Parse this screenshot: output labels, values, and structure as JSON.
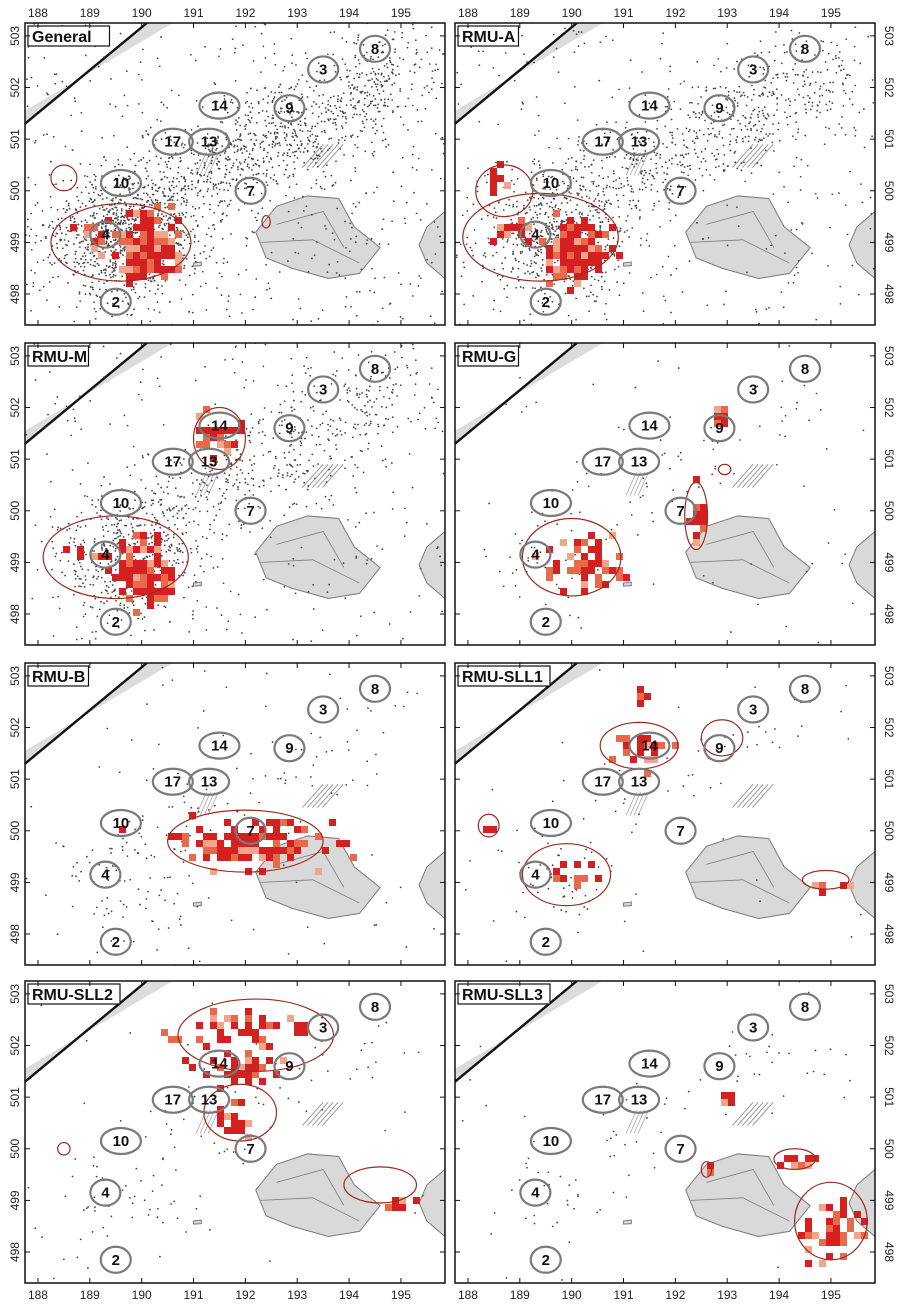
{
  "chart_data": {
    "type": "scatter",
    "x_axis": {
      "ticks": [
        "188",
        "189",
        "190",
        "191",
        "192",
        "193",
        "194",
        "195"
      ],
      "range": [
        187.75,
        195.85
      ]
    },
    "y_axis": {
      "ticks": [
        "498",
        "499",
        "500",
        "501",
        "502",
        "503"
      ],
      "range": [
        497.4,
        503.25
      ]
    },
    "legend": "none",
    "grid": false,
    "colors": {
      "hotspot_high": "#d42020",
      "hotspot_mid": "#e86a4a",
      "hotspot_low": "#f2a58a",
      "contour": "#9e2a1c",
      "zone_outline": "#7a7a7a",
      "water_fill": "#d9d9d9",
      "points": "#444444"
    },
    "zones": [
      {
        "label": "2",
        "x": 189.5,
        "y": 497.85
      },
      {
        "label": "3",
        "x": 193.5,
        "y": 502.35
      },
      {
        "label": "4",
        "x": 189.3,
        "y": 499.15
      },
      {
        "label": "7",
        "x": 192.1,
        "y": 500.0
      },
      {
        "label": "8",
        "x": 194.5,
        "y": 502.75
      },
      {
        "label": "9",
        "x": 192.85,
        "y": 501.6
      },
      {
        "label": "10",
        "x": 189.6,
        "y": 500.15
      },
      {
        "label": "13",
        "x": 191.3,
        "y": 500.95
      },
      {
        "label": "14",
        "x": 191.5,
        "y": 501.65
      },
      {
        "label": "17",
        "x": 190.6,
        "y": 500.95
      }
    ],
    "panels": [
      {
        "title": "General",
        "density": 2400,
        "hotspots": [
          {
            "cx": 190.0,
            "cy": 498.9,
            "rx": 0.55,
            "ry": 0.55,
            "n": 160
          },
          {
            "cx": 188.9,
            "cy": 499.2,
            "rx": 0.3,
            "ry": 0.2,
            "n": 12
          }
        ],
        "contours": [
          {
            "cx": 189.6,
            "cy": 499.0,
            "rx": 1.35,
            "ry": 0.75
          },
          {
            "cx": 188.5,
            "cy": 500.25,
            "rx": 0.25,
            "ry": 0.25
          },
          {
            "cx": 192.4,
            "cy": 499.4,
            "rx": 0.08,
            "ry": 0.12
          }
        ]
      },
      {
        "title": "RMU-A",
        "density": 1500,
        "hotspots": [
          {
            "cx": 190.0,
            "cy": 498.9,
            "rx": 0.55,
            "ry": 0.55,
            "n": 130
          },
          {
            "cx": 188.8,
            "cy": 499.3,
            "rx": 0.4,
            "ry": 0.15,
            "n": 20
          },
          {
            "cx": 188.5,
            "cy": 500.4,
            "rx": 0.2,
            "ry": 0.2,
            "n": 8
          }
        ],
        "contours": [
          {
            "cx": 189.4,
            "cy": 499.1,
            "rx": 1.5,
            "ry": 0.85
          },
          {
            "cx": 188.7,
            "cy": 500.0,
            "rx": 0.55,
            "ry": 0.5
          }
        ]
      },
      {
        "title": "RMU-M",
        "density": 1200,
        "hotspots": [
          {
            "cx": 190.0,
            "cy": 498.9,
            "rx": 0.55,
            "ry": 0.55,
            "n": 120
          },
          {
            "cx": 191.4,
            "cy": 501.5,
            "rx": 0.45,
            "ry": 0.35,
            "n": 22
          },
          {
            "cx": 188.7,
            "cy": 499.25,
            "rx": 0.35,
            "ry": 0.1,
            "n": 10
          }
        ],
        "contours": [
          {
            "cx": 189.5,
            "cy": 499.1,
            "rx": 1.4,
            "ry": 0.8
          },
          {
            "cx": 191.5,
            "cy": 501.4,
            "rx": 0.5,
            "ry": 0.6
          }
        ]
      },
      {
        "title": "RMU-G",
        "density": 150,
        "hotspots": [
          {
            "cx": 190.2,
            "cy": 499.05,
            "rx": 0.55,
            "ry": 0.45,
            "n": 55
          },
          {
            "cx": 192.4,
            "cy": 499.9,
            "rx": 0.15,
            "ry": 0.55,
            "n": 18
          },
          {
            "cx": 192.8,
            "cy": 501.9,
            "rx": 0.15,
            "ry": 0.2,
            "n": 6
          }
        ],
        "contours": [
          {
            "cx": 190.0,
            "cy": 499.1,
            "rx": 0.95,
            "ry": 0.75
          },
          {
            "cx": 192.4,
            "cy": 499.9,
            "rx": 0.22,
            "ry": 0.65
          },
          {
            "cx": 192.95,
            "cy": 500.8,
            "rx": 0.12,
            "ry": 0.1
          }
        ]
      },
      {
        "title": "RMU-B",
        "density": 220,
        "hotspots": [
          {
            "cx": 192.0,
            "cy": 499.8,
            "rx": 1.25,
            "ry": 0.4,
            "n": 120
          }
        ],
        "contours": [
          {
            "cx": 192.0,
            "cy": 499.8,
            "rx": 1.5,
            "ry": 0.6
          }
        ]
      },
      {
        "title": "RMU-SLL1",
        "density": 120,
        "hotspots": [
          {
            "cx": 191.3,
            "cy": 501.65,
            "rx": 0.6,
            "ry": 0.2,
            "n": 26
          },
          {
            "cx": 190.1,
            "cy": 499.2,
            "rx": 0.45,
            "ry": 0.35,
            "n": 16
          },
          {
            "cx": 191.3,
            "cy": 502.7,
            "rx": 0.1,
            "ry": 0.15,
            "n": 6
          },
          {
            "cx": 188.4,
            "cy": 500.1,
            "rx": 0.1,
            "ry": 0.1,
            "n": 5
          },
          {
            "cx": 194.9,
            "cy": 499.0,
            "rx": 0.25,
            "ry": 0.06,
            "n": 6
          }
        ],
        "contours": [
          {
            "cx": 191.3,
            "cy": 501.65,
            "rx": 0.75,
            "ry": 0.45
          },
          {
            "cx": 189.9,
            "cy": 499.15,
            "rx": 0.85,
            "ry": 0.6
          },
          {
            "cx": 192.9,
            "cy": 501.8,
            "rx": 0.4,
            "ry": 0.35
          },
          {
            "cx": 188.4,
            "cy": 500.1,
            "rx": 0.2,
            "ry": 0.22
          },
          {
            "cx": 194.9,
            "cy": 499.05,
            "rx": 0.45,
            "ry": 0.18
          }
        ]
      },
      {
        "title": "RMU-SLL2",
        "density": 130,
        "hotspots": [
          {
            "cx": 192.0,
            "cy": 502.4,
            "rx": 1.2,
            "ry": 0.35,
            "n": 40
          },
          {
            "cx": 191.8,
            "cy": 501.6,
            "rx": 0.9,
            "ry": 0.3,
            "n": 35
          },
          {
            "cx": 191.8,
            "cy": 500.6,
            "rx": 0.5,
            "ry": 0.35,
            "n": 18
          },
          {
            "cx": 194.9,
            "cy": 499.0,
            "rx": 0.35,
            "ry": 0.1,
            "n": 10
          }
        ],
        "contours": [
          {
            "cx": 192.2,
            "cy": 502.2,
            "rx": 1.5,
            "ry": 0.7
          },
          {
            "cx": 191.9,
            "cy": 500.7,
            "rx": 0.7,
            "ry": 0.55
          },
          {
            "cx": 194.6,
            "cy": 499.3,
            "rx": 0.7,
            "ry": 0.35
          },
          {
            "cx": 188.5,
            "cy": 500.0,
            "rx": 0.12,
            "ry": 0.12
          }
        ]
      },
      {
        "title": "RMU-SLL3",
        "density": 90,
        "hotspots": [
          {
            "cx": 195.0,
            "cy": 498.5,
            "rx": 0.55,
            "ry": 0.6,
            "n": 45
          },
          {
            "cx": 194.3,
            "cy": 499.8,
            "rx": 0.3,
            "ry": 0.12,
            "n": 10
          },
          {
            "cx": 193.0,
            "cy": 501.05,
            "rx": 0.12,
            "ry": 0.2,
            "n": 6
          },
          {
            "cx": 192.6,
            "cy": 499.6,
            "rx": 0.08,
            "ry": 0.08,
            "n": 3
          }
        ],
        "contours": [
          {
            "cx": 195.0,
            "cy": 498.6,
            "rx": 0.7,
            "ry": 0.75
          },
          {
            "cx": 194.3,
            "cy": 499.8,
            "rx": 0.4,
            "ry": 0.2
          },
          {
            "cx": 192.6,
            "cy": 499.6,
            "rx": 0.1,
            "ry": 0.15
          }
        ]
      }
    ]
  }
}
